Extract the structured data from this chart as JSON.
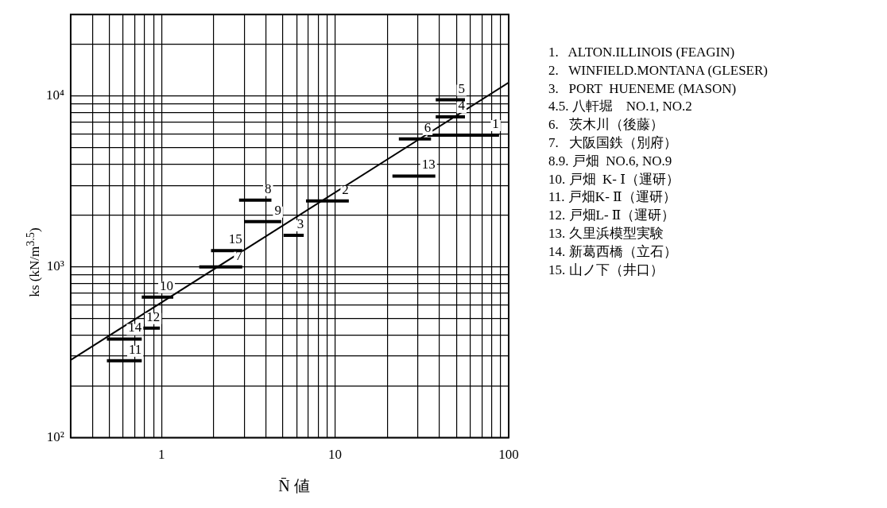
{
  "chart_data": {
    "type": "line",
    "xlabel": "N̄ 値",
    "ylabel": "ks (kN/m$^{3.5}$)",
    "log": "xy",
    "grid": true,
    "legend": false,
    "marker": "none",
    "line_style": "solid",
    "xlim": [
      0.3,
      100
    ],
    "ylim": [
      100,
      30000
    ],
    "xticks": [
      {
        "value": 0.3,
        "label": null
      },
      {
        "value": 0.4,
        "label": null
      },
      {
        "value": 0.5,
        "label": null
      },
      {
        "value": 0.6,
        "label": null
      },
      {
        "value": 0.7,
        "label": null
      },
      {
        "value": 0.8,
        "label": null
      },
      {
        "value": 0.9,
        "label": null
      },
      1,
      {
        "value": 2,
        "label": null
      },
      {
        "value": 3,
        "label": null
      },
      {
        "value": 4,
        "label": null
      },
      {
        "value": 5,
        "label": null
      },
      {
        "value": 6,
        "label": null
      },
      {
        "value": 7,
        "label": null
      },
      {
        "value": 8,
        "label": null
      },
      {
        "value": 9,
        "label": null
      },
      10,
      {
        "value": 20,
        "label": null
      },
      {
        "value": 30,
        "label": null
      },
      {
        "value": 40,
        "label": null
      },
      {
        "value": 50,
        "label": null
      },
      {
        "value": 60,
        "label": null
      },
      {
        "value": 70,
        "label": null
      },
      {
        "value": 80,
        "label": null
      },
      {
        "value": 90,
        "label": null
      },
      100
    ],
    "yticks": [
      {
        "value": 100,
        "label": "10²"
      },
      {
        "value": 200,
        "label": null
      },
      {
        "value": 300,
        "label": null
      },
      {
        "value": 400,
        "label": null
      },
      {
        "value": 500,
        "label": null
      },
      {
        "value": 600,
        "label": null
      },
      {
        "value": 700,
        "label": null
      },
      {
        "value": 800,
        "label": null
      },
      {
        "value": 900,
        "label": null
      },
      {
        "value": 1000,
        "label": "10³"
      },
      {
        "value": 2000,
        "label": null
      },
      {
        "value": 3000,
        "label": null
      },
      {
        "value": 4000,
        "label": null
      },
      {
        "value": 5000,
        "label": null
      },
      {
        "value": 6000,
        "label": null
      },
      {
        "value": 7000,
        "label": null
      },
      {
        "value": 8000,
        "label": null
      },
      {
        "value": 9000,
        "label": null
      },
      {
        "value": 10000,
        "label": "10⁴"
      },
      {
        "value": 20000,
        "label": null
      }
    ],
    "series": [
      {
        "name": "1",
        "color": "#000000",
        "x": [
          34,
          88
        ],
        "values": [
          5900,
          5900
        ]
      },
      {
        "name": "2",
        "color": "#000000",
        "x": [
          6.8,
          12
        ],
        "values": [
          2430,
          2430
        ]
      },
      {
        "name": "3",
        "color": "#000000",
        "x": [
          5.05,
          6.6
        ],
        "values": [
          1530,
          1530
        ]
      },
      {
        "name": "4",
        "color": "#000000",
        "x": [
          38,
          56
        ],
        "values": [
          7540,
          7540
        ]
      },
      {
        "name": "5",
        "color": "#000000",
        "x": [
          38,
          56
        ],
        "values": [
          9500,
          9500
        ]
      },
      {
        "name": "6",
        "color": "#000000",
        "x": [
          23.3,
          35.7
        ],
        "values": [
          5600,
          5600
        ]
      },
      {
        "name": "7",
        "color": "#000000",
        "x": [
          1.65,
          2.92
        ],
        "values": [
          1000,
          1000
        ]
      },
      {
        "name": "8",
        "color": "#000000",
        "x": [
          2.8,
          4.3
        ],
        "values": [
          2460,
          2460
        ]
      },
      {
        "name": "9",
        "color": "#000000",
        "x": [
          3.0,
          4.9
        ],
        "values": [
          1840,
          1840
        ]
      },
      {
        "name": "10",
        "color": "#000000",
        "x": [
          0.77,
          1.17
        ],
        "values": [
          665,
          665
        ]
      },
      {
        "name": "11",
        "color": "#000000",
        "x": [
          0.485,
          0.77
        ],
        "values": [
          282,
          282
        ]
      },
      {
        "name": "12",
        "color": "#000000",
        "x": [
          0.64,
          0.98
        ],
        "values": [
          438,
          438
        ]
      },
      {
        "name": "13",
        "color": "#000000",
        "x": [
          21.4,
          37.8
        ],
        "values": [
          3400,
          3400
        ]
      },
      {
        "name": "14",
        "color": "#000000",
        "x": [
          0.485,
          0.77
        ],
        "values": [
          378,
          378
        ]
      },
      {
        "name": "15",
        "color": "#000000",
        "x": [
          1.93,
          2.92
        ],
        "values": [
          1245,
          1245
        ]
      },
      {
        "type": "line",
        "color": "#000000",
        "x": [
          0.3,
          100
        ],
        "values": [
          285,
          12000
        ]
      }
    ],
    "annotations": [
      "1.   ALTON.ILLINOIS (FEAGIN)",
      "2.   WINFIELD.MONTANA (GLESER)",
      "3.   PORT  HUENEME (MASON)",
      "4.5. 八軒堀　NO.1, NO.2",
      "6.   茨木川（後藤）",
      "7.   大阪国鉄（別府）",
      "8.9. 戸畑  NO.6, NO.9",
      "10. 戸畑  K- Ⅰ（運研）",
      "11. 戸畑K- Ⅱ（運研）",
      "12. 戸畑L- Ⅱ（運研）",
      "13. 久里浜模型実験",
      "14. 新葛西橋（立石）",
      "15. 山ノ下（井口）"
    ]
  }
}
